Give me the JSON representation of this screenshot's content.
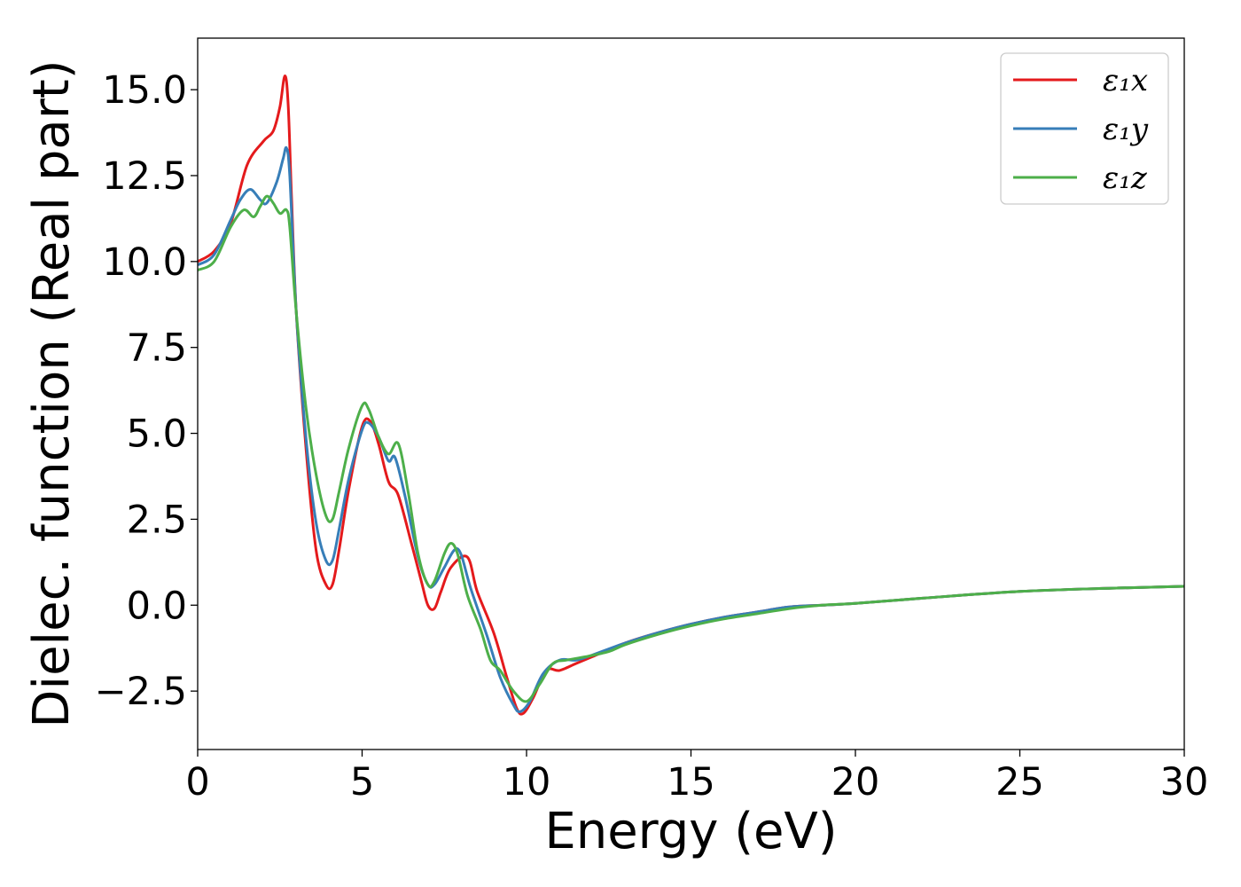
{
  "chart_data": {
    "type": "line",
    "xlabel": "Energy (eV)",
    "ylabel": "Dielec. function (Real part)",
    "xlim": [
      0,
      30
    ],
    "ylim": [
      -4.2,
      16.5
    ],
    "xticks": [
      0,
      5,
      10,
      15,
      20,
      25,
      30
    ],
    "yticks": [
      -2.5,
      0.0,
      2.5,
      5.0,
      7.5,
      10.0,
      12.5,
      15.0
    ],
    "xtick_labels": [
      "0",
      "5",
      "10",
      "15",
      "20",
      "25",
      "30"
    ],
    "ytick_labels": [
      "−2.5",
      "0.0",
      "2.5",
      "5.0",
      "7.5",
      "10.0",
      "12.5",
      "15.0"
    ],
    "grid": false,
    "legend_position": "top-right",
    "series": [
      {
        "name": "ε₁x",
        "color": "#e41a1c",
        "x": [
          0,
          0.5,
          1.0,
          1.5,
          2.0,
          2.3,
          2.5,
          2.65,
          2.75,
          2.85,
          3.0,
          3.3,
          3.6,
          3.9,
          4.1,
          4.3,
          4.6,
          5.0,
          5.25,
          5.5,
          5.8,
          6.1,
          6.5,
          6.8,
          7.0,
          7.2,
          7.4,
          7.7,
          8.2,
          8.5,
          9.0,
          9.4,
          9.7,
          9.9,
          10.2,
          10.6,
          11.0,
          11.5,
          12.0,
          13.0,
          14.0,
          15.0,
          16.0,
          17.0,
          18.0,
          19.0,
          20.0,
          22.0,
          25.0,
          28.0,
          30.0
        ],
        "y": [
          10.0,
          10.3,
          11.1,
          12.8,
          13.5,
          13.8,
          14.5,
          15.4,
          14.6,
          12.0,
          8.5,
          4.5,
          1.6,
          0.6,
          0.6,
          1.6,
          3.4,
          5.2,
          5.35,
          4.7,
          3.6,
          3.2,
          1.8,
          0.7,
          0.0,
          -0.1,
          0.4,
          1.1,
          1.4,
          0.4,
          -0.8,
          -2.1,
          -3.0,
          -3.15,
          -2.7,
          -1.9,
          -1.9,
          -1.7,
          -1.5,
          -1.1,
          -0.8,
          -0.55,
          -0.35,
          -0.2,
          -0.05,
          0.0,
          0.05,
          0.2,
          0.4,
          0.5,
          0.55
        ]
      },
      {
        "name": "ε₁y",
        "color": "#377eb8",
        "x": [
          0,
          0.5,
          1.0,
          1.3,
          1.6,
          1.9,
          2.1,
          2.4,
          2.6,
          2.7,
          2.8,
          3.0,
          3.3,
          3.6,
          3.9,
          4.1,
          4.3,
          4.6,
          5.0,
          5.2,
          5.5,
          5.8,
          6.0,
          6.3,
          6.7,
          7.0,
          7.2,
          7.5,
          7.8,
          8.0,
          8.3,
          8.8,
          9.2,
          9.6,
          9.8,
          10.1,
          10.5,
          11.0,
          11.5,
          12.0,
          13.0,
          14.0,
          15.0,
          16.0,
          17.0,
          18.0,
          19.0,
          20.0,
          22.0,
          25.0,
          28.0,
          30.0
        ],
        "y": [
          9.9,
          10.2,
          11.2,
          11.8,
          12.1,
          11.8,
          11.7,
          12.3,
          13.0,
          13.3,
          12.5,
          8.5,
          4.8,
          2.4,
          1.3,
          1.3,
          2.2,
          3.7,
          5.1,
          5.3,
          4.9,
          4.2,
          4.3,
          3.2,
          1.4,
          0.6,
          0.6,
          1.1,
          1.6,
          1.5,
          0.5,
          -0.9,
          -2.1,
          -2.9,
          -3.1,
          -2.8,
          -2.0,
          -1.6,
          -1.6,
          -1.45,
          -1.1,
          -0.8,
          -0.55,
          -0.35,
          -0.2,
          -0.05,
          0.0,
          0.05,
          0.2,
          0.4,
          0.5,
          0.55
        ]
      },
      {
        "name": "ε₁z",
        "color": "#4daf4a",
        "x": [
          0,
          0.5,
          1.0,
          1.4,
          1.7,
          1.9,
          2.1,
          2.3,
          2.5,
          2.7,
          2.8,
          3.0,
          3.3,
          3.6,
          3.9,
          4.1,
          4.3,
          4.6,
          5.0,
          5.2,
          5.5,
          5.8,
          6.1,
          6.4,
          6.7,
          7.0,
          7.2,
          7.5,
          7.7,
          7.9,
          8.2,
          8.6,
          8.9,
          9.2,
          9.6,
          10.0,
          10.4,
          10.8,
          11.2,
          11.8,
          12.5,
          13.0,
          14.0,
          15.0,
          16.0,
          17.0,
          18.0,
          19.0,
          20.0,
          22.0,
          25.0,
          28.0,
          30.0
        ],
        "y": [
          9.75,
          10.0,
          11.0,
          11.5,
          11.3,
          11.6,
          11.9,
          11.7,
          11.4,
          11.5,
          11.0,
          8.5,
          5.7,
          3.8,
          2.6,
          2.5,
          3.3,
          4.6,
          5.8,
          5.7,
          4.9,
          4.4,
          4.7,
          3.3,
          1.5,
          0.6,
          0.7,
          1.5,
          1.8,
          1.5,
          0.3,
          -0.7,
          -1.6,
          -1.9,
          -2.5,
          -2.8,
          -2.3,
          -1.7,
          -1.6,
          -1.5,
          -1.35,
          -1.15,
          -0.85,
          -0.6,
          -0.4,
          -0.25,
          -0.1,
          0.0,
          0.05,
          0.2,
          0.4,
          0.5,
          0.55
        ]
      }
    ]
  }
}
